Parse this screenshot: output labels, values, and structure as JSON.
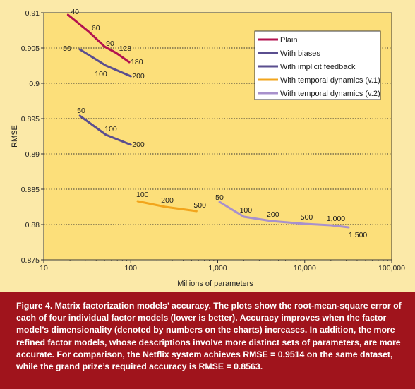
{
  "chart_data": {
    "type": "line",
    "xlabel": "Millions of parameters",
    "ylabel": "RMSE",
    "xscale": "log",
    "xlim": [
      10,
      100000
    ],
    "ylim": [
      0.875,
      0.91
    ],
    "grid": "horizontal dotted",
    "legend_position": "top-right",
    "x_ticks": [
      {
        "value": 10,
        "label": "10"
      },
      {
        "value": 100,
        "label": "100"
      },
      {
        "value": 1000,
        "label": "1,000"
      },
      {
        "value": 10000,
        "label": "10,000"
      },
      {
        "value": 100000,
        "label": "100,000"
      }
    ],
    "y_ticks": [
      {
        "value": 0.875,
        "label": "0.875"
      },
      {
        "value": 0.88,
        "label": "0.88"
      },
      {
        "value": 0.885,
        "label": "0.885"
      },
      {
        "value": 0.89,
        "label": "0.89"
      },
      {
        "value": 0.895,
        "label": "0.895"
      },
      {
        "value": 0.9,
        "label": "0.9"
      },
      {
        "value": 0.905,
        "label": "0.905"
      },
      {
        "value": 0.91,
        "label": "0.91"
      }
    ],
    "series": [
      {
        "name": "Plain",
        "color": "#b3124f",
        "points": [
          {
            "x": 19,
            "y": 0.9097,
            "label": "40"
          },
          {
            "x": 33,
            "y": 0.9073,
            "label": "60"
          },
          {
            "x": 50,
            "y": 0.9052,
            "label": "90"
          },
          {
            "x": 68,
            "y": 0.9043,
            "label": "128"
          },
          {
            "x": 96,
            "y": 0.903,
            "label": "180"
          }
        ]
      },
      {
        "name": "With biases",
        "color": "#5a4e8f",
        "points": [
          {
            "x": 26,
            "y": 0.9048,
            "label": "50"
          },
          {
            "x": 52,
            "y": 0.9025,
            "label": "100"
          },
          {
            "x": 100,
            "y": 0.901,
            "label": "200"
          }
        ]
      },
      {
        "name": "With implicit feedback",
        "color": "#5a4e8f",
        "points": [
          {
            "x": 26,
            "y": 0.8954,
            "label": "50"
          },
          {
            "x": 52,
            "y": 0.8927,
            "label": "100"
          },
          {
            "x": 100,
            "y": 0.8913,
            "label": "200"
          }
        ]
      },
      {
        "name": "With temporal dynamics (v.1)",
        "color": "#f2a51c",
        "points": [
          {
            "x": 120,
            "y": 0.8833,
            "label": "100"
          },
          {
            "x": 250,
            "y": 0.8825,
            "label": "200"
          },
          {
            "x": 570,
            "y": 0.8819,
            "label": "500"
          }
        ]
      },
      {
        "name": "With temporal dynamics (v.2)",
        "color": "#a891cc",
        "points": [
          {
            "x": 1050,
            "y": 0.8832,
            "label": "50"
          },
          {
            "x": 2000,
            "y": 0.8811,
            "label": "100"
          },
          {
            "x": 4100,
            "y": 0.8805,
            "label": "200"
          },
          {
            "x": 10000,
            "y": 0.8801,
            "label": "500"
          },
          {
            "x": 20000,
            "y": 0.8799,
            "label": "1,000"
          },
          {
            "x": 32000,
            "y": 0.8796,
            "label": "1,500"
          }
        ]
      }
    ],
    "legend": [
      {
        "name": "Plain",
        "color": "#b3124f"
      },
      {
        "name": "With biases",
        "color": "#5a4e8f"
      },
      {
        "name": "With implicit feedback",
        "color": "#5a4e8f"
      },
      {
        "name": "With temporal dynamics (v.1)",
        "color": "#f2a51c"
      },
      {
        "name": "With temporal dynamics (v.2)",
        "color": "#a891cc"
      }
    ]
  },
  "caption": {
    "label": "Figure 4.",
    "text": "Matrix factorization models’ accuracy. The plots show the root-mean-square error of each of four individual factor models (lower is better). Accuracy improves when the factor model’s dimensionality (denoted by numbers on the charts) increases. In addition, the more refined factor models, whose descriptions involve more distinct sets of parameters, are more accurate. For comparison, the Netflix system achieves RMSE = 0.9514 on the same dataset, while the grand prize’s required accuracy is RMSE = 0.8563."
  }
}
